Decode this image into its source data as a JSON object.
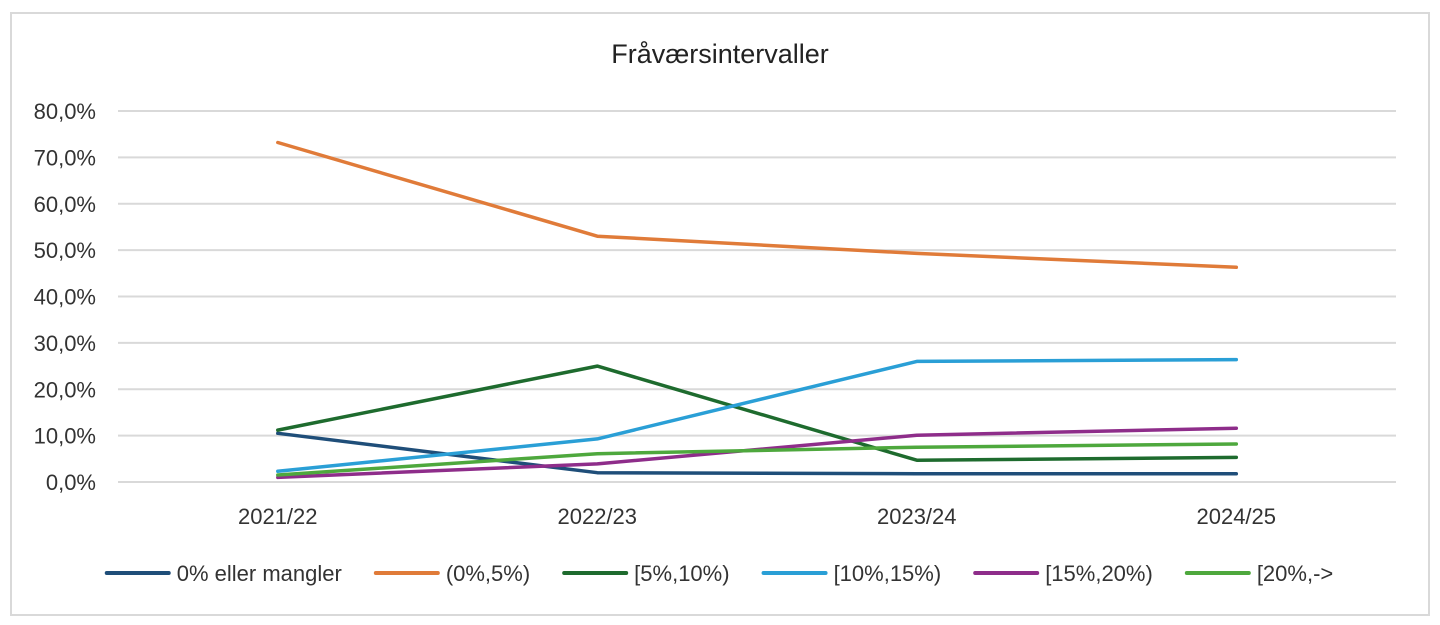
{
  "chart_data": {
    "type": "line",
    "title": "Fråværsintervaller",
    "xlabel": "",
    "ylabel": "",
    "categories": [
      "2021/22",
      "2022/23",
      "2023/24",
      "2024/25"
    ],
    "ylim": [
      0,
      80
    ],
    "yticks": [
      "0,0%",
      "10,0%",
      "20,0%",
      "30,0%",
      "40,0%",
      "50,0%",
      "60,0%",
      "70,0%",
      "80,0%"
    ],
    "grid": true,
    "legend_position": "bottom",
    "series": [
      {
        "name": "0% eller mangler",
        "color": "#1f4e79",
        "values": [
          10.5,
          2.0,
          1.8,
          1.8
        ]
      },
      {
        "name": "(0%,5%)",
        "color": "#e07b39",
        "values": [
          73.2,
          53.0,
          49.3,
          46.3
        ]
      },
      {
        "name": "[5%,10%)",
        "color": "#1e6b2e",
        "values": [
          11.2,
          25.0,
          4.7,
          5.3
        ]
      },
      {
        "name": "[10%,15%)",
        "color": "#2a9fd6",
        "values": [
          2.3,
          9.3,
          26.0,
          26.4
        ]
      },
      {
        "name": "[15%,20%)",
        "color": "#8e2d8a",
        "values": [
          1.0,
          3.9,
          10.1,
          11.6
        ]
      },
      {
        "name": "[20%,->",
        "color": "#4ea83d",
        "values": [
          1.5,
          6.1,
          7.5,
          8.2
        ]
      }
    ]
  }
}
